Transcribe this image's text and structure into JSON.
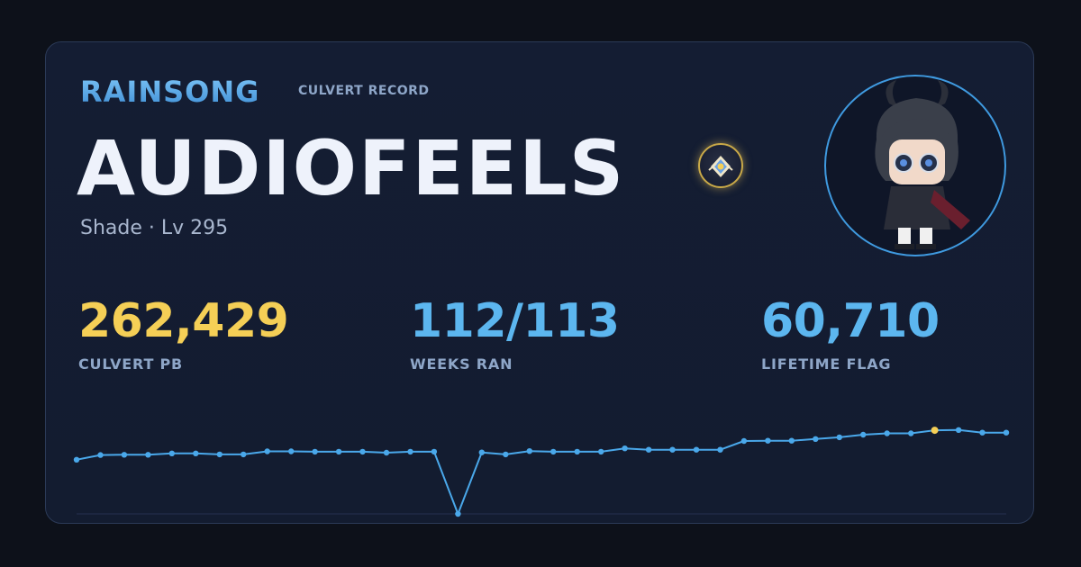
{
  "header": {
    "brand": "RAINSONG",
    "subtitle": "CULVERT RECORD"
  },
  "player": {
    "name": "AUDIOFEELS",
    "class_level": "Shade · Lv 295",
    "emblem_icon": "guild-emblem-icon",
    "avatar_icon": "character-avatar"
  },
  "stats": {
    "pb": {
      "value": "262,429",
      "label": "CULVERT PB"
    },
    "weeks": {
      "value": "112/113",
      "label": "WEEKS RAN"
    },
    "flag": {
      "value": "60,710",
      "label": "LIFETIME FLAG"
    }
  },
  "colors": {
    "accent_gold": "#f5cf56",
    "accent_blue": "#5cb6ef",
    "line": "#4aa8ea",
    "highlight_point": "#f5cf56"
  },
  "chart_data": {
    "type": "line",
    "title": "",
    "xlabel": "",
    "ylabel": "",
    "ylim": [
      0,
      280000
    ],
    "highlight_index": 36,
    "series": [
      {
        "values": [
          162000,
          176000,
          177000,
          177000,
          181000,
          181000,
          178000,
          178000,
          187000,
          187000,
          186000,
          186000,
          186000,
          183000,
          186000,
          186000,
          0,
          184000,
          178000,
          188000,
          186000,
          186000,
          186000,
          196000,
          192000,
          192000,
          192000,
          192000,
          218000,
          219000,
          219000,
          224000,
          229000,
          237000,
          241000,
          241000,
          250000,
          251000,
          243000,
          243000
        ]
      }
    ]
  }
}
